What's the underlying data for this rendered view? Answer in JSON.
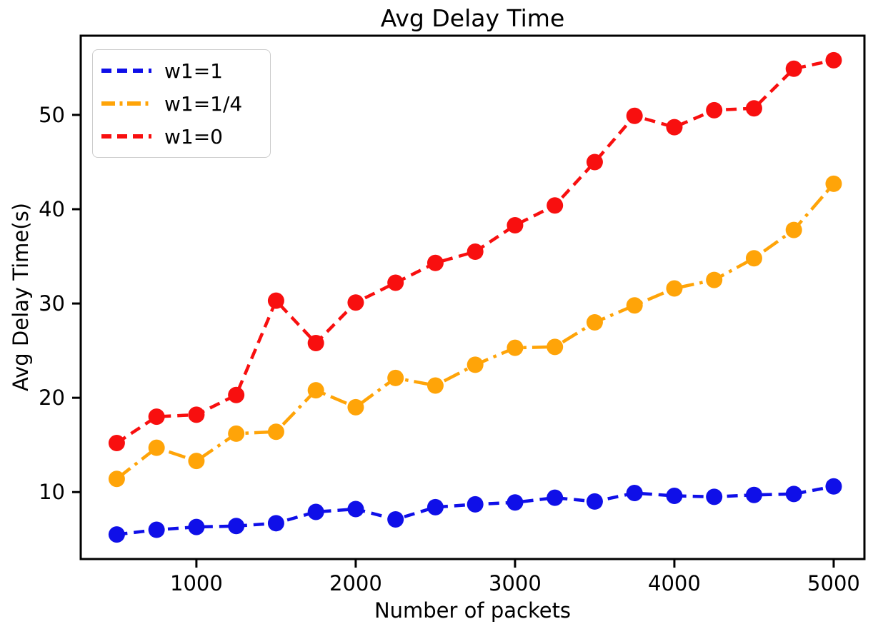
{
  "chart_data": {
    "type": "line",
    "title": "Avg Delay Time",
    "xlabel": "Number of packets",
    "ylabel": "Avg Delay Time(s)",
    "grid": false,
    "legend_position": "upper-left",
    "xlim": [
      274,
      5193
    ],
    "ylim": [
      2.9,
      58.4
    ],
    "xticks": [
      1000,
      2000,
      3000,
      4000,
      5000
    ],
    "yticks": [
      10,
      20,
      30,
      40,
      50
    ],
    "x": [
      500,
      750,
      1000,
      1250,
      1500,
      1750,
      2000,
      2250,
      2500,
      2750,
      3000,
      3250,
      3500,
      3750,
      4000,
      4250,
      4500,
      4750,
      5000
    ],
    "series": [
      {
        "name": "w1=1",
        "color": "#0f0fe8",
        "linestyle": "dashed",
        "marker": "circle",
        "values": [
          5.5,
          6.0,
          6.3,
          6.4,
          6.7,
          7.9,
          8.2,
          7.1,
          8.4,
          8.7,
          8.9,
          9.4,
          9.0,
          9.9,
          9.6,
          9.5,
          9.7,
          9.8,
          10.6
        ]
      },
      {
        "name": "w1=1/4",
        "color": "#ffa408",
        "linestyle": "dashdot",
        "marker": "circle",
        "values": [
          11.4,
          14.7,
          13.3,
          16.2,
          16.4,
          20.8,
          19.0,
          22.1,
          21.3,
          23.5,
          25.3,
          25.4,
          28.0,
          29.8,
          31.6,
          32.5,
          34.8,
          37.8,
          42.7
        ]
      },
      {
        "name": "w1=0",
        "color": "#f80f0f",
        "linestyle": "dashed",
        "marker": "circle",
        "values": [
          15.2,
          18.0,
          18.2,
          20.3,
          30.3,
          25.8,
          30.1,
          32.2,
          34.3,
          35.5,
          38.3,
          40.4,
          45.0,
          49.9,
          48.7,
          50.5,
          50.7,
          54.9,
          55.8
        ]
      }
    ]
  }
}
